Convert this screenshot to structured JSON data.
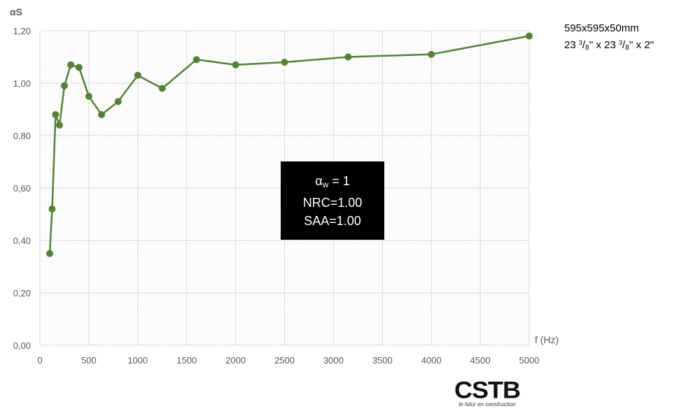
{
  "chart_data": {
    "type": "line",
    "ylabel": "αS",
    "xlabel": "f (Hz)",
    "xlim": [
      0,
      5000
    ],
    "ylim": [
      0,
      1.2
    ],
    "x_ticks": [
      0,
      500,
      1000,
      1500,
      2000,
      2500,
      3000,
      3500,
      4000,
      4500,
      5000
    ],
    "x_tick_labels": [
      "0",
      "500",
      "1000",
      "1500",
      "2000",
      "2500",
      "3000",
      "3500",
      "4000",
      "4500",
      "5000"
    ],
    "y_ticks": [
      0,
      0.2,
      0.4,
      0.6,
      0.8,
      1.0,
      1.2
    ],
    "y_tick_labels": [
      "0,00",
      "0,20",
      "0,40",
      "0,60",
      "0,80",
      "1,00",
      "1,20"
    ],
    "grid": true,
    "series": [
      {
        "color": "#548235",
        "x": [
          100,
          125,
          160,
          200,
          250,
          315,
          400,
          500,
          630,
          800,
          1000,
          1250,
          1600,
          2000,
          2500,
          3150,
          4000,
          5000
        ],
        "y": [
          0.35,
          0.52,
          0.88,
          0.84,
          0.99,
          1.07,
          1.06,
          0.95,
          0.88,
          0.93,
          1.03,
          0.98,
          1.09,
          1.07,
          1.08,
          1.1,
          1.11,
          1.18
        ]
      }
    ]
  },
  "specs": {
    "line1": "595x595x50mm",
    "line2_a": "23 ",
    "frac_num": "3",
    "frac_den": "8",
    "line2_b": "'' x 23 ",
    "line2_c": "'' x 2\""
  },
  "info_box": {
    "alpha_symbol": "α",
    "alpha_sub": "w",
    "alpha_value": " = 1",
    "nrc": "NRC=1.00",
    "saa": "SAA=1.00"
  },
  "logo": {
    "word": "CSTB",
    "tagline": "le futur en construction"
  },
  "colors": {
    "series": "#548235",
    "grid": "#d9d9d9",
    "plot_pattern": "#e9e9e9"
  }
}
